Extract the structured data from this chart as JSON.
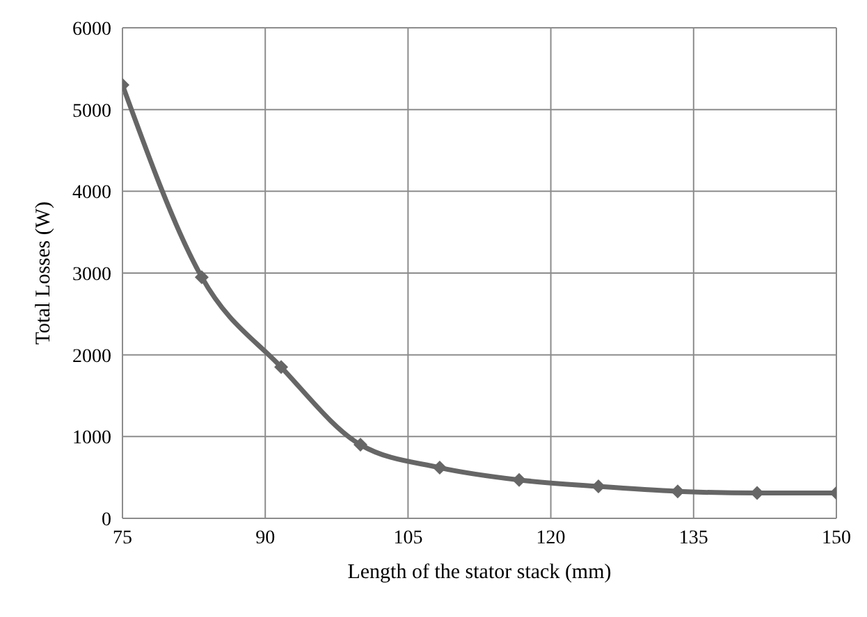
{
  "chart_data": {
    "type": "line",
    "xlabel": "Length of the stator stack (mm)",
    "ylabel": "Total Losses (W)",
    "x": [
      75,
      83.33,
      91.67,
      100,
      108.33,
      116.67,
      125,
      133.33,
      141.67,
      150
    ],
    "series": [
      {
        "color": "#666666",
        "values": [
          5300,
          2950,
          1850,
          900,
          620,
          470,
          390,
          330,
          310,
          310
        ]
      }
    ],
    "xlim": [
      75,
      150
    ],
    "xticks": [
      75,
      90,
      105,
      120,
      135,
      150
    ],
    "ylim": [
      0,
      6000
    ],
    "yticks": [
      0,
      1000,
      2000,
      3000,
      4000,
      5000,
      6000
    ],
    "grid": true,
    "legend": false,
    "marker": "diamond",
    "line_style": "solid"
  }
}
